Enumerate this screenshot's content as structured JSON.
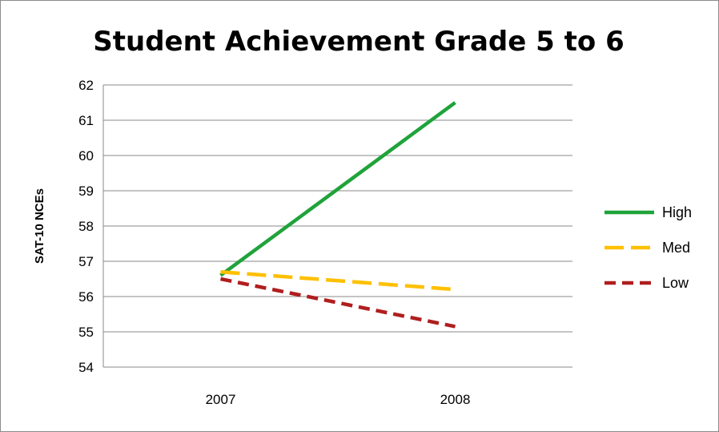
{
  "chart_data": {
    "type": "line",
    "title": "Student Achievement Grade 5 to 6",
    "xlabel": "",
    "ylabel": "SAT-10 NCEs",
    "categories": [
      "2007",
      "2008"
    ],
    "ylim": [
      54,
      62
    ],
    "yticks": [
      54,
      55,
      56,
      57,
      58,
      59,
      60,
      61,
      62
    ],
    "grid": true,
    "legend_position": "right",
    "series": [
      {
        "name": "High",
        "values": [
          56.6,
          61.5
        ],
        "color": "#1fa33a",
        "dash": "solid"
      },
      {
        "name": "Med",
        "values": [
          56.7,
          56.2
        ],
        "color": "#ffc000",
        "dash": "long-dash"
      },
      {
        "name": "Low",
        "values": [
          56.5,
          55.15
        ],
        "color": "#b01e1e",
        "dash": "dash"
      }
    ]
  }
}
